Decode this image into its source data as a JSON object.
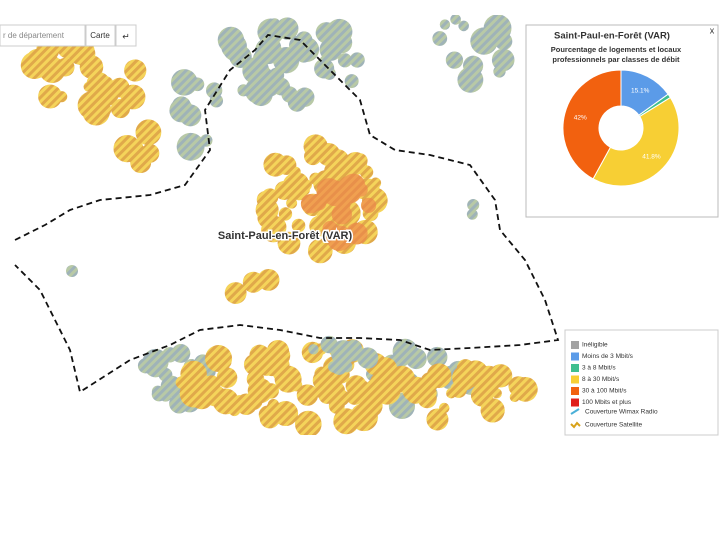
{
  "search": {
    "placeholder": "r de département",
    "button": "Carte",
    "icon": "↵"
  },
  "map": {
    "place_label": "Saint-Paul-en-Forêt (VAR)"
  },
  "popup": {
    "close": "x"
  },
  "chart_data": {
    "type": "pie",
    "title": "Saint-Paul-en-Forêt (VAR)",
    "subtitle": [
      "Pourcentage de logements et locaux",
      "professionnels par classes de débit"
    ],
    "values": [
      15.1,
      1.1,
      41.8,
      42
    ],
    "value_labels": [
      "15.1%",
      null,
      "41.8%",
      "42%"
    ],
    "colors": [
      "#5b9be8",
      "#3fbf8f",
      "#f7cf34",
      "#f2610f"
    ]
  },
  "legend": {
    "items": [
      {
        "label": "Inéligible",
        "color": "#a3a3a3"
      },
      {
        "label": "Moins de 3 Mbit/s",
        "color": "#5b9be8"
      },
      {
        "label": "3 à 8 Mbit/s",
        "color": "#3fbf8f"
      },
      {
        "label": "8 à 30 Mbit/s",
        "color": "#f7cf34"
      },
      {
        "label": "30 à 100 Mbit/s",
        "color": "#f2610f"
      },
      {
        "label": "100 Mbits et plus",
        "color": "#e0201c"
      }
    ],
    "coverage": [
      "Couverture Wimax Radio",
      "Couverture Satellite"
    ]
  }
}
